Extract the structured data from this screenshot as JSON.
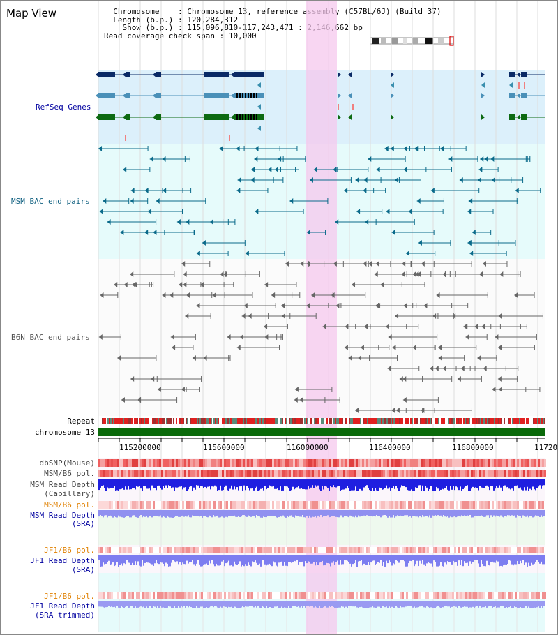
{
  "page_title": "Map View",
  "info": {
    "chromosome_key": "Chromosome",
    "chromosome_value": "Chromosome 13, reference assembly (C57BL/6J) (Build 37)",
    "length_key": "Length (b.p.)",
    "length_value": "120,284,312",
    "show_key": "Show (b.p.)",
    "show_value": "115,096,810-117,243,471 : 2,146,662 bp",
    "span_key": "Read coverage check span",
    "span_value": "10,000"
  },
  "tracks": {
    "refseq": "RefSeq Genes",
    "msm_bac": "MSM BAC end pairs",
    "b6n_bac": "B6N BAC end pairs",
    "repeat": "Repeat",
    "chromosome": "chromosome 13",
    "dbsnp": "dbSNP(Mouse)",
    "msm_b6_pol": "MSM/B6 pol.",
    "msm_depth_cap_1": "MSM Read Depth",
    "msm_depth_cap_2": "(Capillary)",
    "msm_b6_pol_sra": "MSM/B6 pol.",
    "msm_depth_sra_1": "MSM Read Depth",
    "msm_depth_sra_2": "(SRA)",
    "jf1_b6_pol": "JF1/B6 pol.",
    "jf1_depth_1": "JF1 Read Depth",
    "jf1_depth_2": "(SRA)",
    "jf1_b6_pol_2": "JF1/B6 pol.",
    "jf1_trim_1": "JF1 Read Depth",
    "jf1_trim_2": "(SRA trimmed)"
  },
  "ruler": {
    "ticks": [
      "115200000",
      "115600000",
      "116000000",
      "116400000",
      "116800000",
      "11720"
    ]
  },
  "colors": {
    "refseq_bg": "#dcf0fb",
    "bac_bg": "#e6fbfb",
    "highlight": "#f5c8ee",
    "refseq_navy": "#0a2a66",
    "refseq_blue": "#4a90b8",
    "refseq_green": "#0d6a12",
    "chromosome_green": "#0a6a0a",
    "msm_teal": "#0a6a8a",
    "b6n_gray": "#666666",
    "depth_blue": "#1f1fe0",
    "depth_light": "#7d7df0",
    "label_blue": "#0000a0",
    "label_teal": "#106080",
    "label_orange": "#e08000"
  }
}
